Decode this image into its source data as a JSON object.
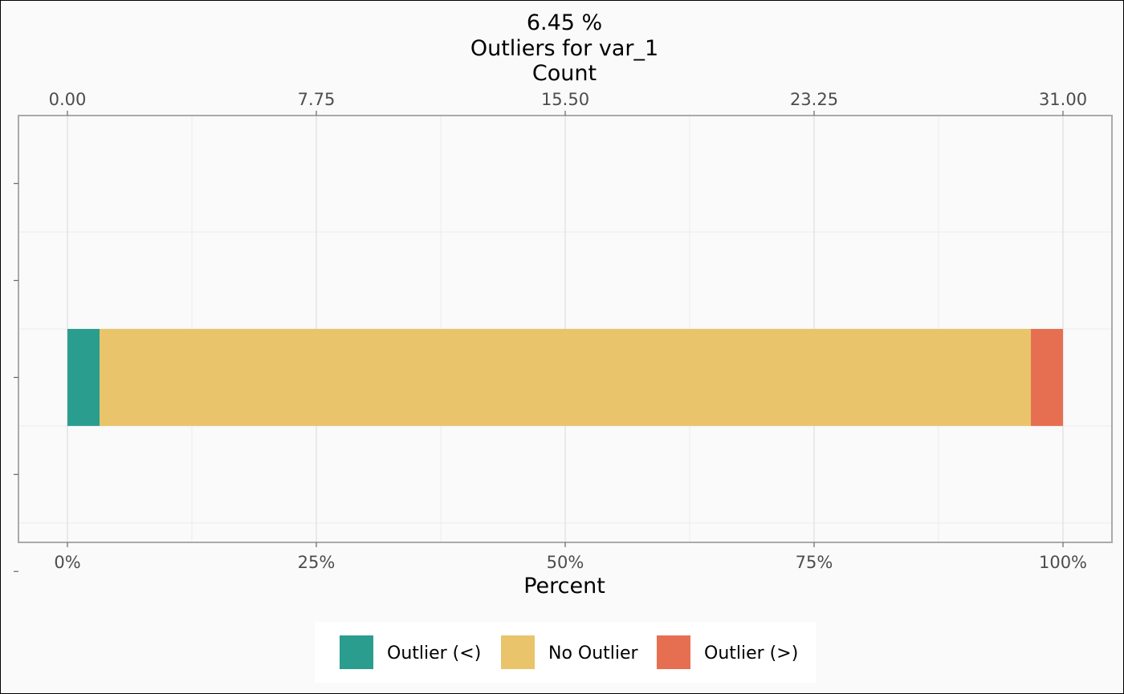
{
  "chart_data": {
    "type": "bar",
    "orientation": "horizontal",
    "stacked": true,
    "title": [
      "6.45 %",
      "Outliers for var_1",
      "Count"
    ],
    "xlabel": "Percent",
    "top_axis": {
      "ticks": [
        0,
        7.75,
        15.5,
        23.25,
        31
      ],
      "tick_labels": [
        "0.00",
        "7.75",
        "15.50",
        "23.25",
        "31.00"
      ],
      "range": [
        0,
        31
      ]
    },
    "bottom_axis": {
      "ticks": [
        0,
        25,
        50,
        75,
        100
      ],
      "tick_labels": [
        "0%",
        "25%",
        "50%",
        "75%",
        "100%"
      ],
      "range": [
        0,
        100
      ]
    },
    "y_axis": {
      "tick_count": 5,
      "tick_labels": []
    },
    "series": [
      {
        "name": "Outlier (<)",
        "count": 1,
        "percent": 3.225,
        "color": "#2a9d8f"
      },
      {
        "name": "No Outlier",
        "count": 29,
        "percent": 93.55,
        "color": "#e9c46a"
      },
      {
        "name": "Outlier (>)",
        "count": 1,
        "percent": 3.225,
        "color": "#e76f51"
      }
    ],
    "grid": true,
    "legend_position": "bottom",
    "colors": {
      "background": "#fafafa",
      "panel_border": "#aaaaaa",
      "grid_major": "#dedede",
      "grid_minor": "#ececec",
      "tick_text": "#4d4d4d"
    }
  }
}
